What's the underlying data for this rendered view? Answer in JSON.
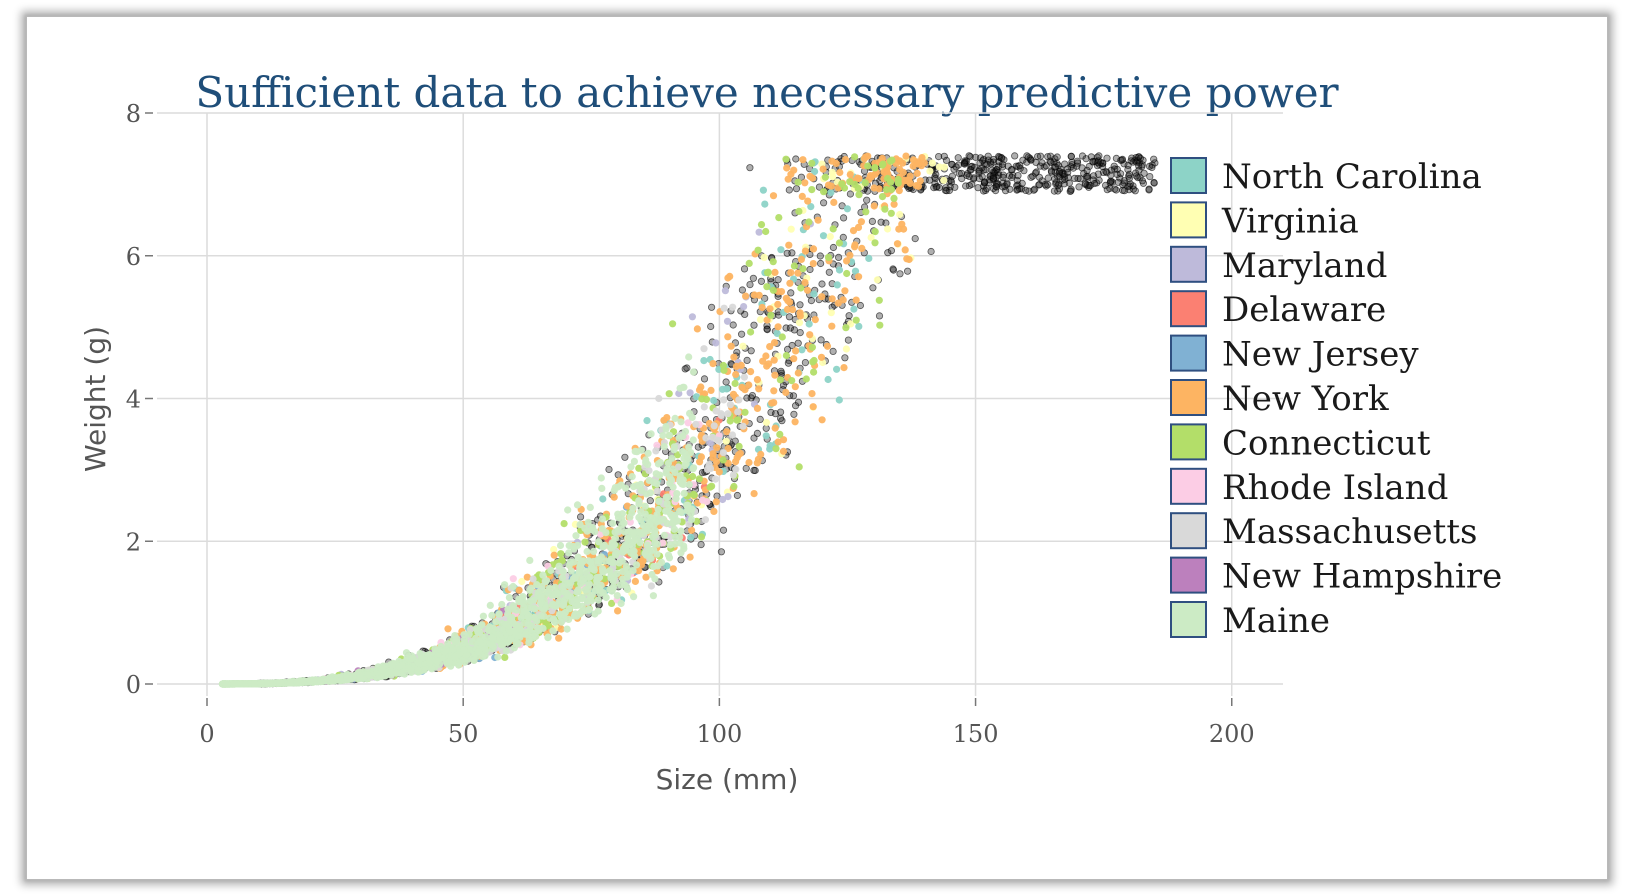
{
  "chart_data": {
    "type": "scatter",
    "title": "Sufficient data to achieve necessary predictive power",
    "xlabel": "Size (mm)",
    "ylabel": "Weight (g)",
    "xlim": [
      0,
      210
    ],
    "ylim": [
      0,
      8
    ],
    "x_ticks": [
      0,
      50,
      100,
      150,
      200
    ],
    "y_ticks": [
      0,
      2,
      4,
      6,
      8
    ],
    "x_tick_labels": [
      "0",
      "50",
      "100",
      "150",
      "200"
    ],
    "y_tick_labels": [
      "0",
      "2",
      "4",
      "6",
      "8"
    ],
    "grid": true,
    "legend_position": "right",
    "series": [
      {
        "name": "North Carolina",
        "color": "#8dd3c7",
        "x_range": [
          50,
          130
        ],
        "count": 130
      },
      {
        "name": "Virginia",
        "color": "#ffffb3",
        "x_range": [
          45,
          145
        ],
        "count": 110
      },
      {
        "name": "Maryland",
        "color": "#bebada",
        "x_range": [
          20,
          120
        ],
        "count": 70
      },
      {
        "name": "Delaware",
        "color": "#fb8072",
        "x_range": [
          30,
          100
        ],
        "count": 40
      },
      {
        "name": "New Jersey",
        "color": "#80b1d3",
        "x_range": [
          25,
          85
        ],
        "count": 70
      },
      {
        "name": "New York",
        "color": "#fdb462",
        "x_range": [
          45,
          140
        ],
        "count": 650
      },
      {
        "name": "Connecticut",
        "color": "#b3de69",
        "x_range": [
          25,
          135
        ],
        "count": 350
      },
      {
        "name": "Rhode Island",
        "color": "#fccde5",
        "x_range": [
          20,
          100
        ],
        "count": 90
      },
      {
        "name": "Massachusetts",
        "color": "#d9d9d9",
        "x_range": [
          30,
          105
        ],
        "count": 260
      },
      {
        "name": "New Hampshire",
        "color": "#bc80bd",
        "x_range": [
          5,
          60
        ],
        "count": 45
      },
      {
        "name": "Maine",
        "color": "#ccebc5",
        "x_range": [
          3,
          95
        ],
        "count": 1600
      }
    ],
    "unlabeled_series": {
      "color": "#1a1a1a",
      "x_range": [
        10,
        185
      ],
      "count": 1700
    }
  }
}
